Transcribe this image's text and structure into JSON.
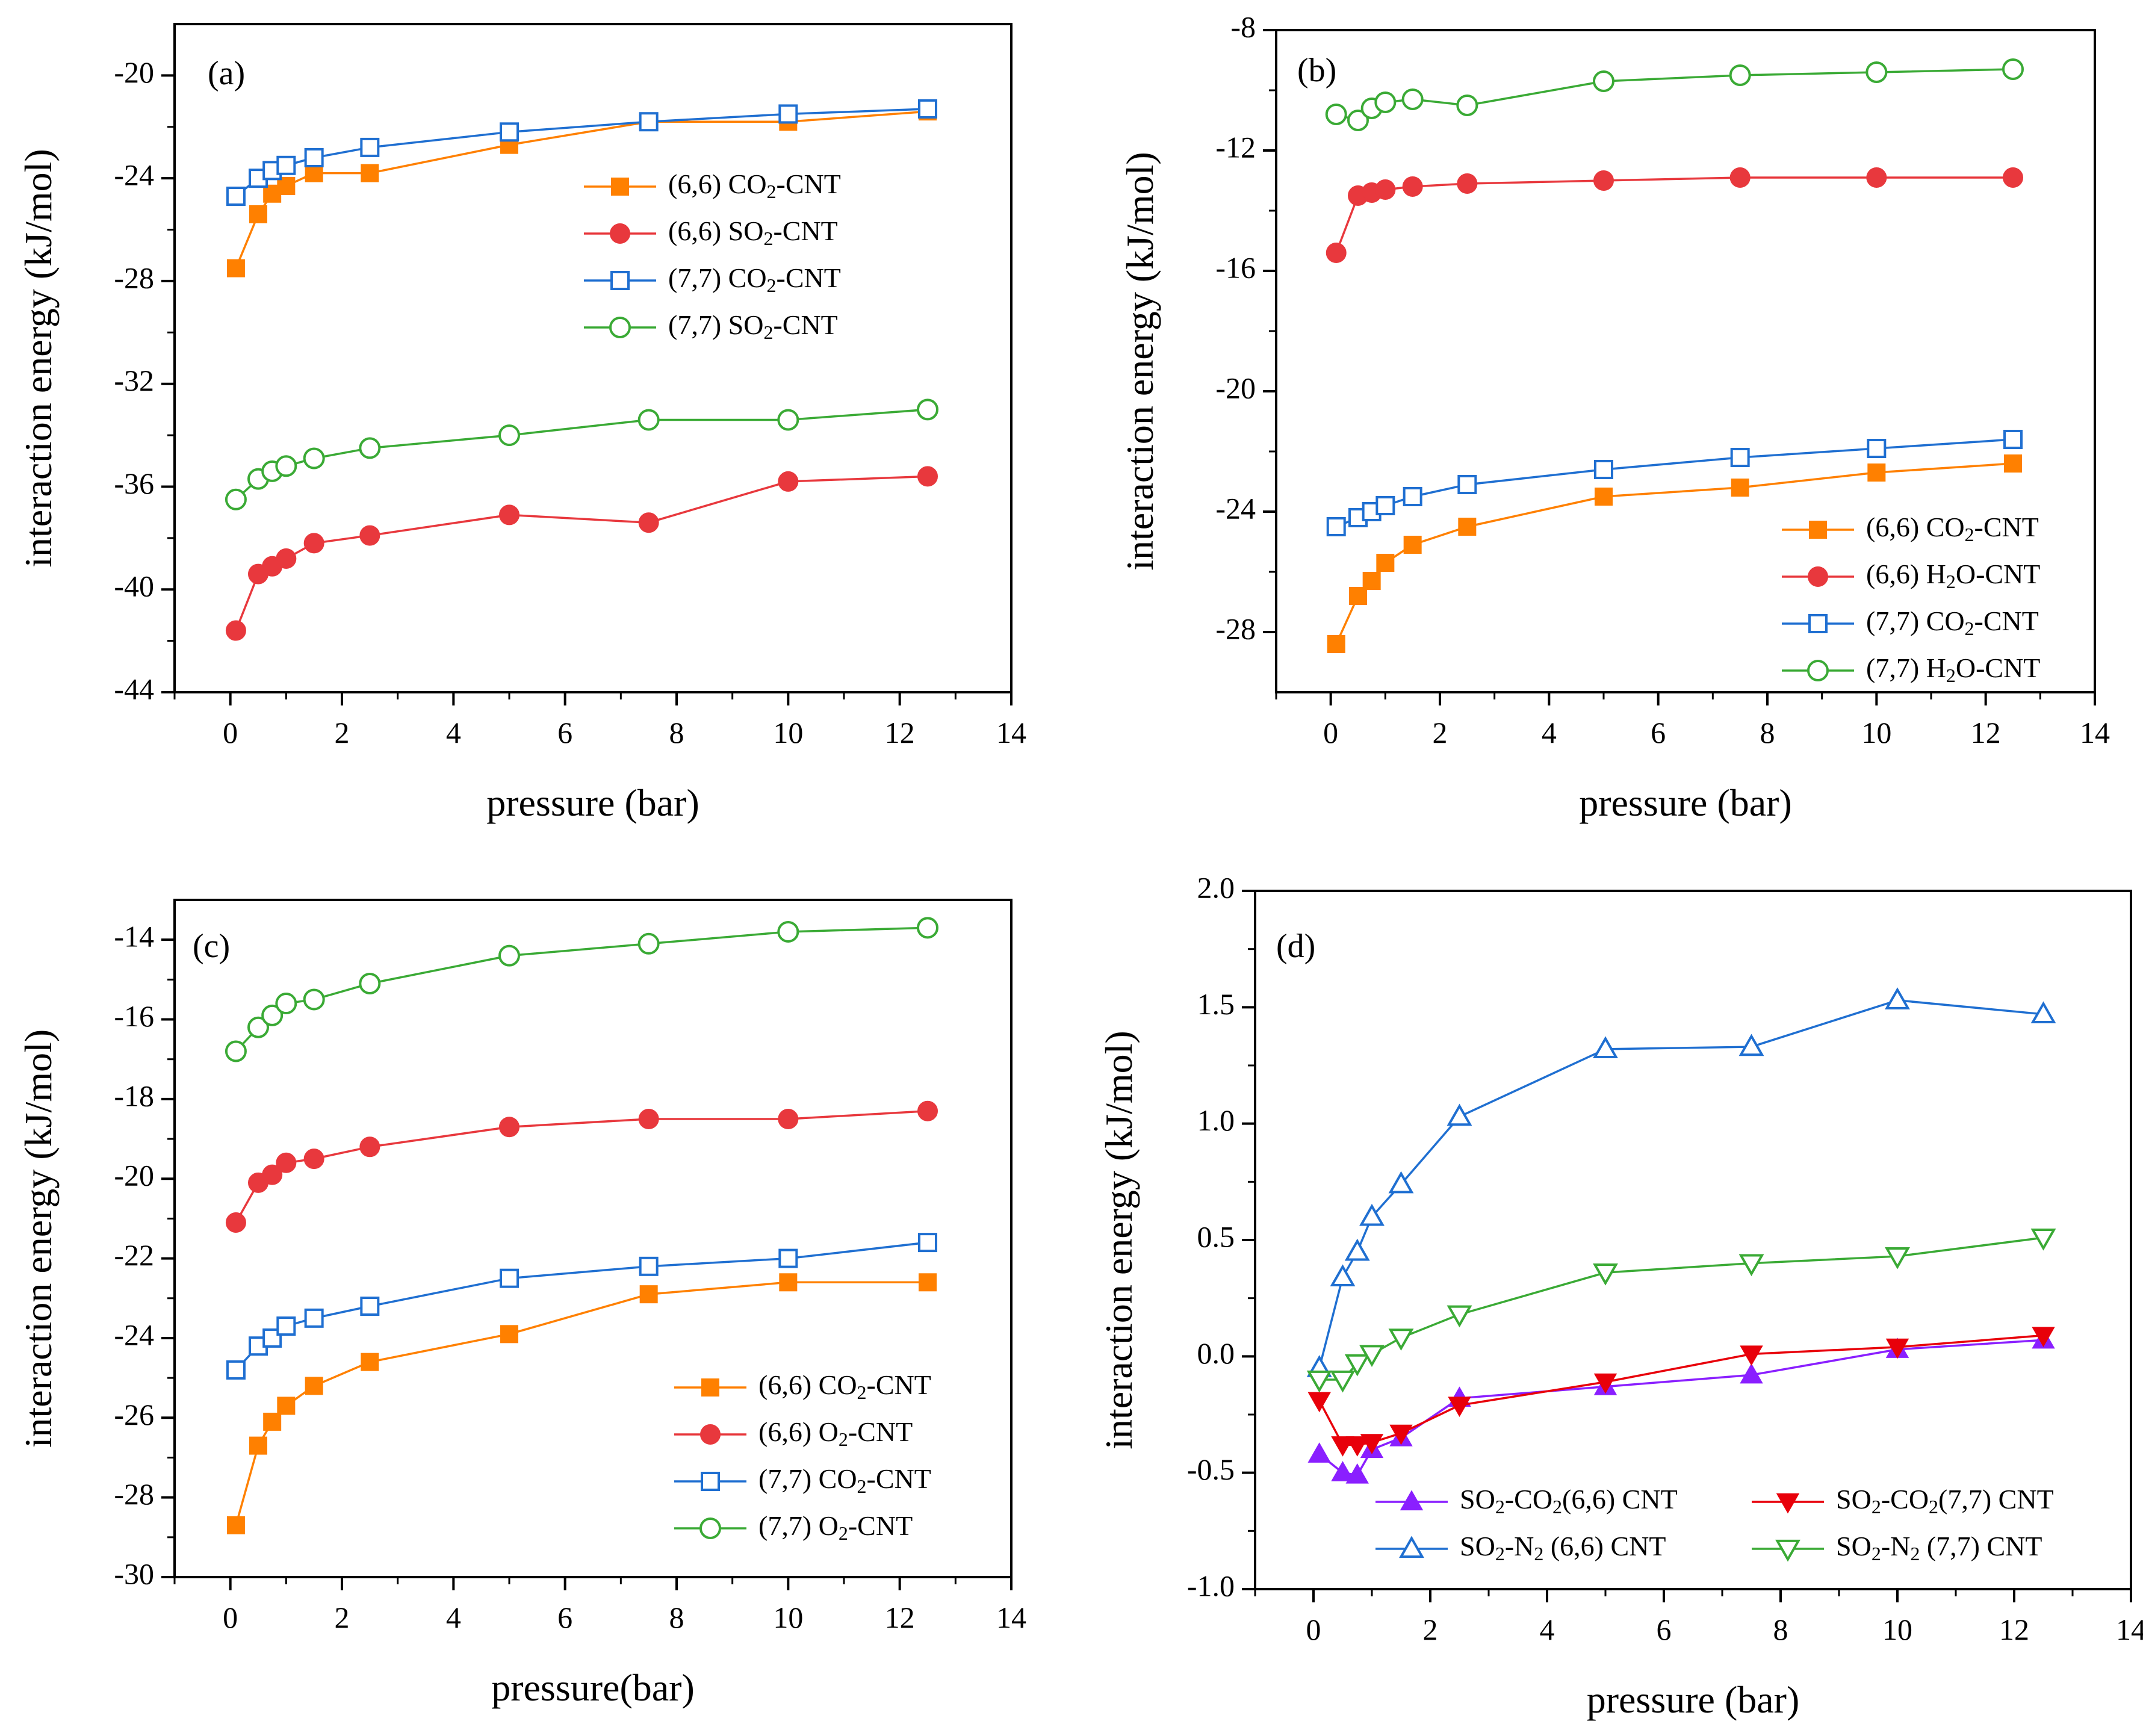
{
  "colors": {
    "orange": "#ff8000",
    "red": "#e8383d",
    "blue": "#1f6fd1",
    "green": "#3aaa35",
    "purple": "#8a1fff",
    "axis": "#000000"
  },
  "common": {
    "xlabel": "pressure (bar)",
    "ylabel": "interaction energy (kJ/mol)"
  },
  "chart_data": [
    {
      "type": "line",
      "panel_label": "(a)",
      "xlabel": "pressure (bar)",
      "ylabel": "interaction energy (kJ/mol)",
      "xlim": [
        -1,
        14
      ],
      "ylim": [
        -44,
        -18
      ],
      "xticks": [
        0,
        2,
        4,
        6,
        8,
        10,
        12,
        14
      ],
      "yticks": [
        -44,
        -40,
        -36,
        -32,
        -28,
        -24,
        -20
      ],
      "x": [
        0.1,
        0.5,
        0.75,
        1,
        1.5,
        2.5,
        5,
        7.5,
        10,
        12.5
      ],
      "legend_position": "center-right",
      "series": [
        {
          "name": "(6,6) CO2-CNT",
          "base": "(6,6) CO",
          "sub": "2",
          "rest": "-CNT",
          "marker": "square",
          "filled": true,
          "color": "#ff8000",
          "values": [
            -27.5,
            -25.4,
            -24.6,
            -24.3,
            -23.8,
            -23.8,
            -22.7,
            -21.8,
            -21.8,
            -21.4
          ]
        },
        {
          "name": "(6,6) SO2-CNT",
          "base": "(6,6) SO",
          "sub": "2",
          "rest": "-CNT",
          "marker": "circle",
          "filled": true,
          "color": "#e8383d",
          "values": [
            -41.6,
            -39.4,
            -39.1,
            -38.8,
            -38.2,
            -37.9,
            -37.1,
            -37.4,
            -35.8,
            -35.6
          ]
        },
        {
          "name": "(7,7) CO2-CNT",
          "base": "(7,7) CO",
          "sub": "2",
          "rest": "-CNT",
          "marker": "square",
          "filled": false,
          "color": "#1f6fd1",
          "values": [
            -24.7,
            -24.0,
            -23.7,
            -23.5,
            -23.2,
            -22.8,
            -22.2,
            -21.8,
            -21.5,
            -21.3
          ]
        },
        {
          "name": "(7,7) SO2-CNT",
          "base": "(7,7) SO",
          "sub": "2",
          "rest": "-CNT",
          "marker": "circle",
          "filled": false,
          "color": "#3aaa35",
          "values": [
            -36.5,
            -35.7,
            -35.4,
            -35.2,
            -34.9,
            -34.5,
            -34.0,
            -33.4,
            -33.4,
            -33.0
          ]
        }
      ]
    },
    {
      "type": "line",
      "panel_label": "(b)",
      "xlabel": "pressure (bar)",
      "ylabel": "interaction energy (kJ/mol)",
      "xlim": [
        -1,
        14
      ],
      "ylim": [
        -30,
        -8
      ],
      "xticks": [
        0,
        2,
        4,
        6,
        8,
        10,
        12,
        14
      ],
      "yticks": [
        -28,
        -24,
        -20,
        -16,
        -12,
        -8
      ],
      "x": [
        0.1,
        0.5,
        0.75,
        1,
        1.5,
        2.5,
        5,
        7.5,
        10,
        12.5
      ],
      "legend_position": "bottom-right",
      "series": [
        {
          "name": "(6,6) CO2-CNT",
          "base": "(6,6) CO",
          "sub": "2",
          "rest": "-CNT",
          "marker": "square",
          "filled": true,
          "color": "#ff8000",
          "values": [
            -28.4,
            -26.8,
            -26.3,
            -25.7,
            -25.1,
            -24.5,
            -23.5,
            -23.2,
            -22.7,
            -22.4
          ]
        },
        {
          "name": "(6,6) H2O-CNT",
          "base": "(6,6) H",
          "sub": "2",
          "rest": "O-CNT",
          "marker": "circle",
          "filled": true,
          "color": "#e8383d",
          "values": [
            -15.4,
            -13.5,
            -13.4,
            -13.3,
            -13.2,
            -13.1,
            -13.0,
            -12.9,
            -12.9,
            -12.9
          ]
        },
        {
          "name": "(7,7) CO2-CNT",
          "base": "(7,7) CO",
          "sub": "2",
          "rest": "-CNT",
          "marker": "square",
          "filled": false,
          "color": "#1f6fd1",
          "values": [
            -24.5,
            -24.2,
            -24.0,
            -23.8,
            -23.5,
            -23.1,
            -22.6,
            -22.2,
            -21.9,
            -21.6
          ]
        },
        {
          "name": "(7,7) H2O-CNT",
          "base": "(7,7) H",
          "sub": "2",
          "rest": "O-CNT",
          "marker": "circle",
          "filled": false,
          "color": "#3aaa35",
          "values": [
            -10.8,
            -11.0,
            -10.6,
            -10.4,
            -10.3,
            -10.5,
            -9.7,
            -9.5,
            -9.4,
            -9.3
          ]
        }
      ]
    },
    {
      "type": "line",
      "panel_label": "(c)",
      "xlabel": "pressure(bar)",
      "ylabel": "interaction energy (kJ/mol)",
      "xlim": [
        -1,
        14
      ],
      "ylim": [
        -30,
        -13
      ],
      "xticks": [
        0,
        2,
        4,
        6,
        8,
        10,
        12,
        14
      ],
      "yticks": [
        -30,
        -28,
        -26,
        -24,
        -22,
        -20,
        -18,
        -16,
        -14
      ],
      "x": [
        0.1,
        0.5,
        0.75,
        1,
        1.5,
        2.5,
        5,
        7.5,
        10,
        12.5
      ],
      "legend_position": "bottom-right",
      "series": [
        {
          "name": "(6,6) CO2-CNT",
          "base": "(6,6) CO",
          "sub": "2",
          "rest": "-CNT",
          "marker": "square",
          "filled": true,
          "color": "#ff8000",
          "values": [
            -28.7,
            -26.7,
            -26.1,
            -25.7,
            -25.2,
            -24.6,
            -23.9,
            -22.9,
            -22.6,
            -22.6
          ]
        },
        {
          "name": "(6,6) O2-CNT",
          "base": "(6,6) O",
          "sub": "2",
          "rest": "-CNT",
          "marker": "circle",
          "filled": true,
          "color": "#e8383d",
          "values": [
            -21.1,
            -20.1,
            -19.9,
            -19.6,
            -19.5,
            -19.2,
            -18.7,
            -18.5,
            -18.5,
            -18.3
          ]
        },
        {
          "name": "(7,7) CO2-CNT",
          "base": "(7,7) CO",
          "sub": "2",
          "rest": "-CNT",
          "marker": "square",
          "filled": false,
          "color": "#1f6fd1",
          "values": [
            -24.8,
            -24.2,
            -24.0,
            -23.7,
            -23.5,
            -23.2,
            -22.5,
            -22.2,
            -22.0,
            -21.6
          ]
        },
        {
          "name": "(7,7) O2-CNT",
          "base": "(7,7) O",
          "sub": "2",
          "rest": "-CNT",
          "marker": "circle",
          "filled": false,
          "color": "#3aaa35",
          "values": [
            -16.8,
            -16.2,
            -15.9,
            -15.6,
            -15.5,
            -15.1,
            -14.4,
            -14.1,
            -13.8,
            -13.7
          ]
        }
      ]
    },
    {
      "type": "line",
      "panel_label": "(d)",
      "xlabel": "pressure (bar)",
      "ylabel": "interaction energy (kJ/mol)",
      "xlim": [
        -1,
        14
      ],
      "ylim": [
        -1.0,
        2.0
      ],
      "xticks": [
        0,
        2,
        4,
        6,
        8,
        10,
        12,
        14
      ],
      "yticks": [
        -1.0,
        -0.5,
        0.0,
        0.5,
        1.0,
        1.5,
        2.0
      ],
      "ytick_decimals": 1,
      "x": [
        0.1,
        0.5,
        0.75,
        1,
        1.5,
        2.5,
        5,
        7.5,
        10,
        12.5
      ],
      "legend_position": "bottom, two columns",
      "series": [
        {
          "name": "SO2-CO2(6,6) CNT",
          "base": "SO",
          "sub": "2",
          "rest": "-CO",
          "sub2": "2",
          "rest2": "(6,6) CNT",
          "marker": "triangle-up",
          "filled": true,
          "color": "#8a1fff",
          "values": [
            -0.42,
            -0.5,
            -0.51,
            -0.4,
            -0.35,
            -0.18,
            -0.13,
            -0.08,
            0.03,
            0.07
          ]
        },
        {
          "name": "SO2-CO2(7,7) CNT",
          "base": "SO",
          "sub": "2",
          "rest": "-CO",
          "sub2": "2",
          "rest2": "(7,7) CNT",
          "marker": "triangle-down",
          "filled": true,
          "color": "#e8000a",
          "values": [
            -0.19,
            -0.38,
            -0.38,
            -0.37,
            -0.33,
            -0.21,
            -0.11,
            0.01,
            0.04,
            0.09
          ]
        },
        {
          "name": "SO2-N2 (6,6) CNT",
          "base": "SO",
          "sub": "2",
          "rest": "-N",
          "sub2": "2",
          "rest2": "  (6,6) CNT",
          "marker": "triangle-up",
          "filled": false,
          "color": "#1f6fd1",
          "values": [
            -0.05,
            0.34,
            0.45,
            0.6,
            0.74,
            1.03,
            1.32,
            1.33,
            1.53,
            1.47
          ]
        },
        {
          "name": "SO2-N2 (7,7) CNT",
          "base": "SO",
          "sub": "2",
          "rest": "-N",
          "sub2": "2",
          "rest2": "  (7,7) CNT",
          "marker": "triangle-down",
          "filled": false,
          "color": "#3aaa35",
          "values": [
            -0.1,
            -0.1,
            -0.03,
            0.01,
            0.08,
            0.18,
            0.36,
            0.4,
            0.43,
            0.51
          ]
        }
      ]
    }
  ]
}
